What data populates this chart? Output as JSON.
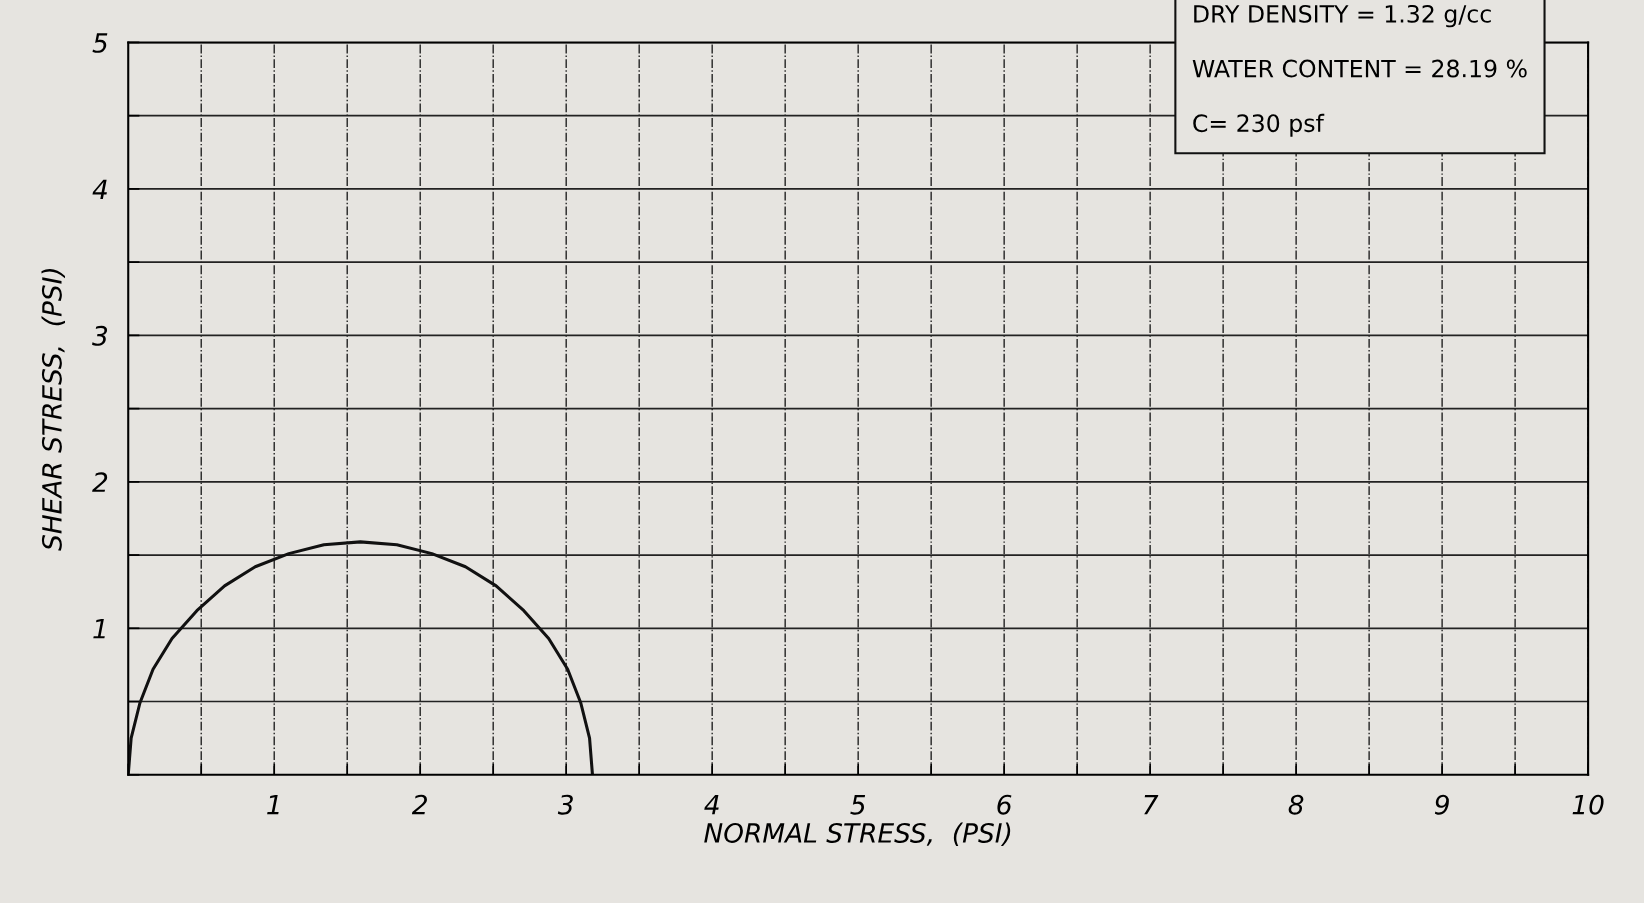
{
  "chart_data": {
    "type": "line",
    "xlabel": "NORMAL STRESS,  (PSI)",
    "ylabel": "SHEAR STRESS,  (PSI)",
    "annotations": [
      "DRY DENSITY = 1.32 g/cc",
      "WATER CONTENT = 28.19 %",
      "C= 230 psf"
    ],
    "series": [
      {
        "color": "#111111",
        "x": [
          3.18,
          3.16,
          3.1,
          3.01,
          2.88,
          2.71,
          2.52,
          2.31,
          2.08,
          1.84,
          1.59,
          1.34,
          1.1,
          0.87,
          0.66,
          0.47,
          0.3,
          0.17,
          0.08,
          0.02,
          0
        ],
        "values": [
          0,
          0.25,
          0.49,
          0.72,
          0.93,
          1.12,
          1.29,
          1.42,
          1.51,
          1.57,
          1.59,
          1.57,
          1.51,
          1.42,
          1.29,
          1.12,
          0.93,
          0.72,
          0.49,
          0.25,
          0
        ]
      }
    ],
    "xlim": [
      0,
      10
    ],
    "ylim": [
      0,
      5
    ],
    "xticks": [
      {
        "value": 0,
        "label": null
      },
      {
        "value": 0.5,
        "label": null
      },
      1,
      {
        "value": 1.5,
        "label": null
      },
      2,
      {
        "value": 2.5,
        "label": null
      },
      3,
      {
        "value": 3.5,
        "label": null
      },
      4,
      {
        "value": 4.5,
        "label": null
      },
      5,
      {
        "value": 5.5,
        "label": null
      },
      6,
      {
        "value": 6.5,
        "label": null
      },
      7,
      {
        "value": 7.5,
        "label": null
      },
      8,
      {
        "value": 8.5,
        "label": null
      },
      9,
      {
        "value": 9.5,
        "label": null
      },
      10
    ],
    "yticks": [
      {
        "value": 0,
        "label": null
      },
      {
        "value": 0.5,
        "label": null
      },
      1,
      {
        "value": 1.5,
        "label": null
      },
      2,
      {
        "value": 2.5,
        "label": null
      },
      3,
      {
        "value": 3.5,
        "label": null
      },
      4,
      {
        "value": 4.5,
        "label": null
      },
      5
    ],
    "grid": true,
    "marker": "none",
    "line_style": "solid"
  }
}
